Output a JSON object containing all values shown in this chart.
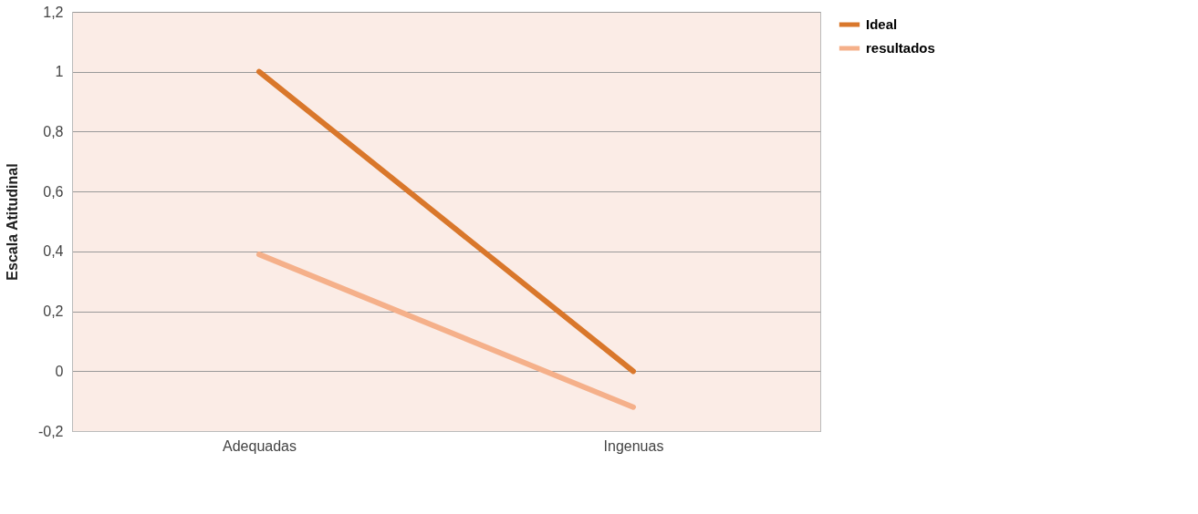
{
  "chart_data": {
    "type": "line",
    "ylabel": "Escala Atitudinal",
    "categories": [
      "Adequadas",
      "Ingenuas"
    ],
    "series": [
      {
        "name": "Ideal",
        "color": "#d9772b",
        "values": [
          1,
          0
        ]
      },
      {
        "name": "resultados",
        "color": "#f5b08a",
        "values": [
          0.39,
          -0.12
        ]
      }
    ],
    "ylim": [
      -0.2,
      1.2
    ],
    "yticks": [
      {
        "value": -0.2,
        "label": "-0,2"
      },
      0,
      {
        "value": 0.2,
        "label": "0,2"
      },
      {
        "value": 0.4,
        "label": "0,4"
      },
      {
        "value": 0.6,
        "label": "0,6"
      },
      {
        "value": 0.8,
        "label": "0,8"
      },
      1,
      {
        "value": 1.2,
        "label": "1,2"
      }
    ],
    "grid": "y",
    "legend": "right",
    "marker": "none",
    "line_style": "solid"
  }
}
